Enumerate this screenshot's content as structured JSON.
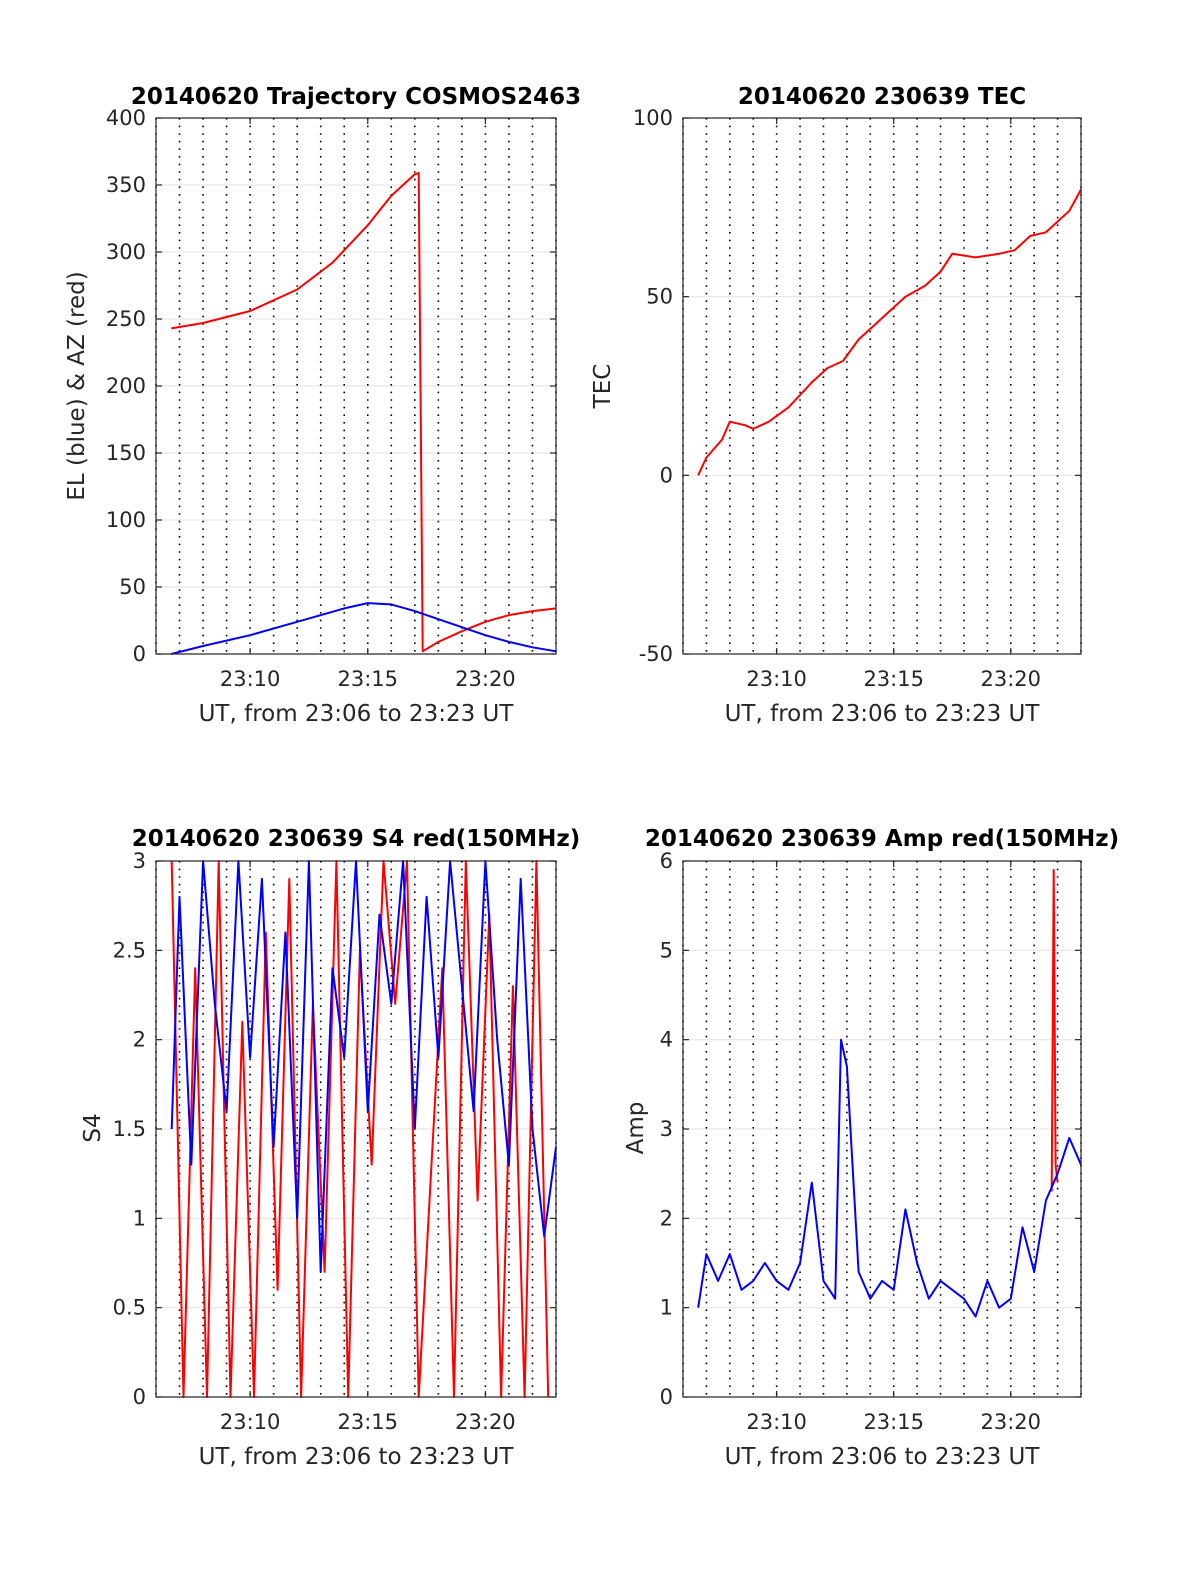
{
  "figure": {
    "panels": [
      {
        "id": "traj",
        "title": "20140620 Trajectory COSMOS2463",
        "xlabel": "UT, from 23:06 to 23:23 UT",
        "ylabel": "EL (blue) & AZ (red)"
      },
      {
        "id": "tec",
        "title": "20140620 230639 TEC",
        "xlabel": "UT, from 23:06 to 23:23 UT",
        "ylabel": "TEC"
      },
      {
        "id": "s4",
        "title": "20140620 230639 S4 red(150MHz)",
        "xlabel": "UT, from 23:06 to 23:23 UT",
        "ylabel": "S4"
      },
      {
        "id": "amp",
        "title": "20140620 230639 Amp red(150MHz)",
        "xlabel": "UT, from 23:06 to 23:23 UT",
        "ylabel": "Amp"
      }
    ]
  },
  "chart_data": [
    {
      "type": "line",
      "title": "20140620 Trajectory COSMOS2463",
      "xlabel": "UT, from 23:06 to 23:23 UT",
      "ylabel": "EL (blue) & AZ (red)",
      "xlim": [
        "23:06",
        "23:23"
      ],
      "ylim": [
        0,
        400
      ],
      "xticks": [
        "23:10",
        "23:15",
        "23:20"
      ],
      "yticks": [
        0,
        50,
        100,
        150,
        200,
        250,
        300,
        350,
        400
      ],
      "grid": true,
      "series": [
        {
          "color": "#ff0000",
          "x": [
            "23:06:39",
            "23:08:00",
            "23:10:00",
            "23:12:00",
            "23:13:30",
            "23:15:00",
            "23:16:00",
            "23:17:00",
            "23:17:10",
            "23:17:20",
            "23:18:00",
            "23:19:00",
            "23:20:00",
            "23:21:00",
            "23:22:00",
            "23:23:00"
          ],
          "values": [
            243,
            247,
            256,
            272,
            292,
            320,
            342,
            358,
            359,
            2,
            9,
            17,
            24,
            29,
            32,
            34
          ]
        },
        {
          "color": "#0000ff",
          "x": [
            "23:06:39",
            "23:08:00",
            "23:10:00",
            "23:12:00",
            "23:14:00",
            "23:15:00",
            "23:16:00",
            "23:17:00",
            "23:18:00",
            "23:19:00",
            "23:20:00",
            "23:21:00",
            "23:22:00",
            "23:23:00"
          ],
          "values": [
            0,
            6,
            14,
            24,
            34,
            38,
            37,
            32,
            26,
            20,
            14,
            9,
            5,
            2
          ]
        }
      ]
    },
    {
      "type": "line",
      "title": "20140620 230639 TEC",
      "xlabel": "UT, from 23:06 to 23:23 UT",
      "ylabel": "TEC",
      "xlim": [
        "23:06",
        "23:23"
      ],
      "ylim": [
        -50,
        100
      ],
      "xticks": [
        "23:10",
        "23:15",
        "23:20"
      ],
      "yticks": [
        -50,
        0,
        50,
        100
      ],
      "grid": true,
      "series": [
        {
          "color": "#ff0000",
          "x": [
            "23:06:39",
            "23:07:00",
            "23:07:40",
            "23:08:00",
            "23:08:40",
            "23:09:00",
            "23:09:40",
            "23:10:30",
            "23:11:30",
            "23:12:10",
            "23:12:50",
            "23:13:30",
            "23:14:20",
            "23:15:00",
            "23:15:30",
            "23:16:20",
            "23:17:00",
            "23:17:30",
            "23:18:30",
            "23:19:30",
            "23:20:10",
            "23:20:50",
            "23:21:30",
            "23:22:30",
            "23:23:00"
          ],
          "values": [
            0,
            5,
            10,
            15,
            14,
            13,
            15,
            19,
            26,
            30,
            32,
            38,
            43,
            47,
            50,
            53,
            57,
            62,
            61,
            62,
            63,
            67,
            68,
            74,
            80
          ]
        }
      ]
    },
    {
      "type": "line",
      "title": "20140620 230639 S4 red(150MHz)",
      "xlabel": "UT, from 23:06 to 23:23 UT",
      "ylabel": "S4",
      "xlim": [
        "23:06",
        "23:23"
      ],
      "ylim": [
        0,
        3
      ],
      "xticks": [
        "23:10",
        "23:15",
        "23:20"
      ],
      "yticks": [
        0,
        0.5,
        1,
        1.5,
        2,
        2.5,
        3
      ],
      "grid": true,
      "series": [
        {
          "color": "#ff0000",
          "x": [
            "23:06:40",
            "23:07:10",
            "23:07:40",
            "23:08:10",
            "23:08:40",
            "23:09:10",
            "23:09:40",
            "23:10:10",
            "23:10:40",
            "23:11:10",
            "23:11:40",
            "23:12:10",
            "23:12:40",
            "23:13:10",
            "23:13:40",
            "23:14:10",
            "23:14:40",
            "23:15:10",
            "23:15:40",
            "23:16:10",
            "23:16:40",
            "23:17:10",
            "23:17:40",
            "23:18:10",
            "23:18:40",
            "23:19:10",
            "23:19:40",
            "23:20:10",
            "23:20:40",
            "23:21:10",
            "23:21:40",
            "23:22:10",
            "23:22:40"
          ],
          "values": [
            3,
            0,
            2.4,
            0,
            3,
            0,
            2.1,
            0,
            2.6,
            0.6,
            2.9,
            0,
            2.2,
            0.7,
            3,
            0,
            2.5,
            1.3,
            3,
            2.2,
            3,
            0,
            1.2,
            2.4,
            0,
            3,
            1.1,
            2.7,
            0,
            2.3,
            0,
            3,
            0
          ]
        },
        {
          "color": "#0000ff",
          "x": [
            "23:06:40",
            "23:07:00",
            "23:07:30",
            "23:08:00",
            "23:08:30",
            "23:09:00",
            "23:09:30",
            "23:10:00",
            "23:10:30",
            "23:11:00",
            "23:11:30",
            "23:12:00",
            "23:12:30",
            "23:13:00",
            "23:13:30",
            "23:14:00",
            "23:14:30",
            "23:15:00",
            "23:15:30",
            "23:16:00",
            "23:16:30",
            "23:17:00",
            "23:17:30",
            "23:18:00",
            "23:18:30",
            "23:19:00",
            "23:19:30",
            "23:20:00",
            "23:20:30",
            "23:21:00",
            "23:21:30",
            "23:22:00",
            "23:22:30",
            "23:23:00"
          ],
          "values": [
            1.5,
            2.8,
            1.3,
            3,
            2.2,
            1.6,
            3,
            1.9,
            2.9,
            1.4,
            2.6,
            1.0,
            3,
            0.7,
            2.4,
            1.9,
            3,
            1.6,
            2.7,
            2.2,
            3,
            1.5,
            2.8,
            1.9,
            3,
            2.3,
            1.6,
            3,
            2.0,
            1.3,
            2.9,
            1.5,
            0.9,
            1.4
          ]
        }
      ]
    },
    {
      "type": "line",
      "title": "20140620 230639 Amp red(150MHz)",
      "xlabel": "UT, from 23:06 to 23:23 UT",
      "ylabel": "Amp",
      "xlim": [
        "23:06",
        "23:23"
      ],
      "ylim": [
        0,
        6
      ],
      "xticks": [
        "23:10",
        "23:15",
        "23:20"
      ],
      "yticks": [
        0,
        1,
        2,
        3,
        4,
        5,
        6
      ],
      "grid": true,
      "series": [
        {
          "color": "#ff0000",
          "x": [
            "23:21:45",
            "23:21:50",
            "23:21:55",
            "23:22:00"
          ],
          "values": [
            2.3,
            5.9,
            2.6,
            2.4
          ]
        },
        {
          "color": "#0000ff",
          "x": [
            "23:06:39",
            "23:07:00",
            "23:07:30",
            "23:08:00",
            "23:08:30",
            "23:09:00",
            "23:09:30",
            "23:10:00",
            "23:10:30",
            "23:11:00",
            "23:11:30",
            "23:12:00",
            "23:12:30",
            "23:12:45",
            "23:13:00",
            "23:13:30",
            "23:14:00",
            "23:14:30",
            "23:15:00",
            "23:15:30",
            "23:16:00",
            "23:16:30",
            "23:17:00",
            "23:17:30",
            "23:18:00",
            "23:18:30",
            "23:19:00",
            "23:19:30",
            "23:20:00",
            "23:20:30",
            "23:21:00",
            "23:21:30",
            "23:22:00",
            "23:22:30",
            "23:23:00"
          ],
          "values": [
            1.0,
            1.6,
            1.3,
            1.6,
            1.2,
            1.3,
            1.5,
            1.3,
            1.2,
            1.5,
            2.4,
            1.3,
            1.1,
            4.0,
            3.7,
            1.4,
            1.1,
            1.3,
            1.2,
            2.1,
            1.5,
            1.1,
            1.3,
            1.2,
            1.1,
            0.9,
            1.3,
            1.0,
            1.1,
            1.9,
            1.4,
            2.2,
            2.5,
            2.9,
            2.6
          ]
        }
      ]
    }
  ]
}
